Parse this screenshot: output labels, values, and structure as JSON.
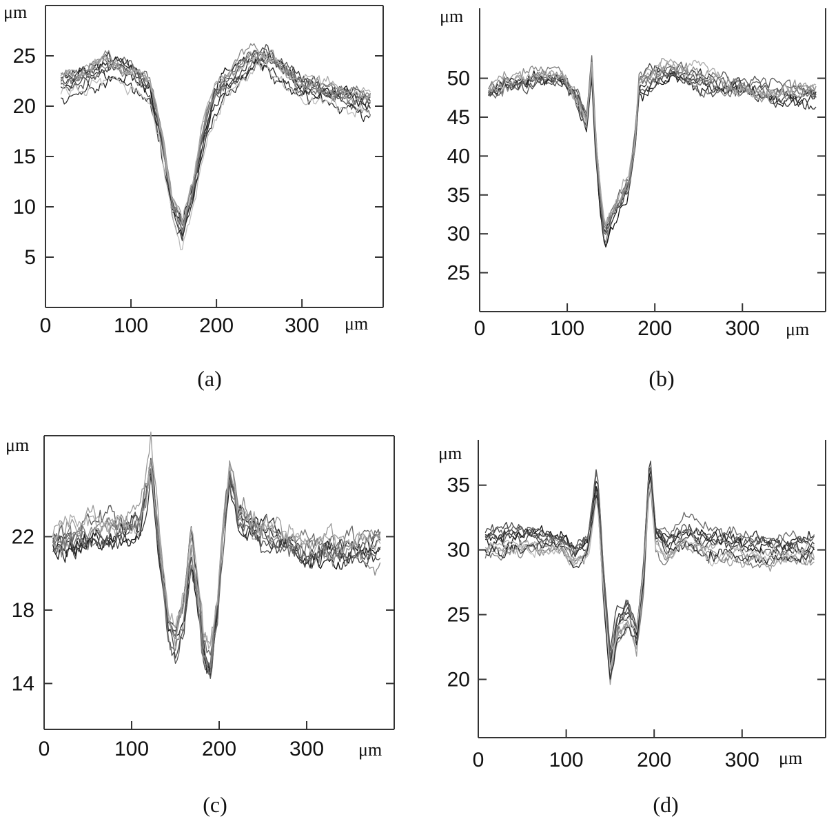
{
  "chart_data": [
    {
      "type": "line",
      "panel_label": "(a)",
      "xlabel": "μm",
      "ylabel": "μm",
      "xlim": [
        0,
        395
      ],
      "ylim": [
        0,
        30
      ],
      "xticks": [
        0,
        100,
        200,
        300
      ],
      "yticks": [
        5,
        10,
        15,
        20,
        25
      ],
      "x_range": [
        18,
        380
      ],
      "series_count": 12,
      "baseline_left": 22,
      "baseline_right": 20.5,
      "profile": [
        [
          18,
          22
        ],
        [
          40,
          22.5
        ],
        [
          70,
          23.5
        ],
        [
          100,
          23
        ],
        [
          122,
          21.5
        ],
        [
          135,
          17
        ],
        [
          148,
          10
        ],
        [
          160,
          7.5
        ],
        [
          172,
          11
        ],
        [
          185,
          17
        ],
        [
          198,
          20.5
        ],
        [
          215,
          22.5
        ],
        [
          240,
          24
        ],
        [
          260,
          24.5
        ],
        [
          280,
          23
        ],
        [
          300,
          21.5
        ],
        [
          330,
          21
        ],
        [
          360,
          20.5
        ],
        [
          380,
          20
        ]
      ]
    },
    {
      "type": "line",
      "panel_label": "(b)",
      "xlabel": "μm",
      "ylabel": "μm",
      "xlim": [
        0,
        395
      ],
      "ylim": [
        20,
        59
      ],
      "xticks": [
        0,
        100,
        200,
        300
      ],
      "yticks": [
        25,
        30,
        35,
        40,
        45,
        50
      ],
      "x_range": [
        10,
        385
      ],
      "series_count": 10,
      "baseline_left": 49,
      "baseline_right": 48.5,
      "profile": [
        [
          10,
          49
        ],
        [
          40,
          50
        ],
        [
          70,
          51
        ],
        [
          95,
          50.5
        ],
        [
          112,
          48
        ],
        [
          122,
          45
        ],
        [
          128,
          52
        ],
        [
          132,
          43
        ],
        [
          138,
          35
        ],
        [
          143,
          30.5
        ],
        [
          150,
          33
        ],
        [
          160,
          35
        ],
        [
          170,
          37
        ],
        [
          177,
          42
        ],
        [
          182,
          50
        ],
        [
          200,
          51
        ],
        [
          230,
          52
        ],
        [
          260,
          50.5
        ],
        [
          300,
          49.5
        ],
        [
          340,
          48.5
        ],
        [
          385,
          48.5
        ]
      ]
    },
    {
      "type": "line",
      "panel_label": "(c)",
      "xlabel": "μm",
      "ylabel": "μm",
      "xlim": [
        0,
        400
      ],
      "ylim": [
        11.5,
        27.5
      ],
      "xticks": [
        0,
        100,
        200,
        300
      ],
      "yticks": [
        14,
        18,
        22
      ],
      "x_range": [
        10,
        385
      ],
      "series_count": 10,
      "baseline_left": 21.5,
      "baseline_right": 21.5,
      "profile": [
        [
          10,
          21.5
        ],
        [
          50,
          22
        ],
        [
          90,
          21.8
        ],
        [
          110,
          22.5
        ],
        [
          122,
          25.5
        ],
        [
          132,
          21
        ],
        [
          142,
          17
        ],
        [
          150,
          16.2
        ],
        [
          160,
          18
        ],
        [
          168,
          21.5
        ],
        [
          175,
          19
        ],
        [
          182,
          16
        ],
        [
          190,
          15
        ],
        [
          198,
          18
        ],
        [
          205,
          22.5
        ],
        [
          212,
          25.5
        ],
        [
          222,
          22.5
        ],
        [
          250,
          22
        ],
        [
          300,
          21.2
        ],
        [
          350,
          21.3
        ],
        [
          385,
          21.5
        ]
      ]
    },
    {
      "type": "line",
      "panel_label": "(d)",
      "xlabel": "μm",
      "ylabel": "μm",
      "xlim": [
        0,
        395
      ],
      "ylim": [
        15.5,
        38.5
      ],
      "xticks": [
        0,
        100,
        200,
        300
      ],
      "yticks": [
        20,
        25,
        30,
        35
      ],
      "x_range": [
        8,
        382
      ],
      "series_count": 12,
      "baseline_left": 30.5,
      "baseline_right": 30,
      "profile": [
        [
          8,
          30.5
        ],
        [
          60,
          30.8
        ],
        [
          95,
          30.5
        ],
        [
          110,
          29.5
        ],
        [
          125,
          30.5
        ],
        [
          135,
          35.5
        ],
        [
          142,
          28
        ],
        [
          150,
          21
        ],
        [
          158,
          24
        ],
        [
          170,
          25
        ],
        [
          180,
          23.5
        ],
        [
          188,
          28
        ],
        [
          195,
          36.5
        ],
        [
          202,
          31
        ],
        [
          215,
          30
        ],
        [
          235,
          31.2
        ],
        [
          260,
          30.5
        ],
        [
          300,
          30.2
        ],
        [
          340,
          30
        ],
        [
          382,
          30
        ]
      ]
    }
  ]
}
